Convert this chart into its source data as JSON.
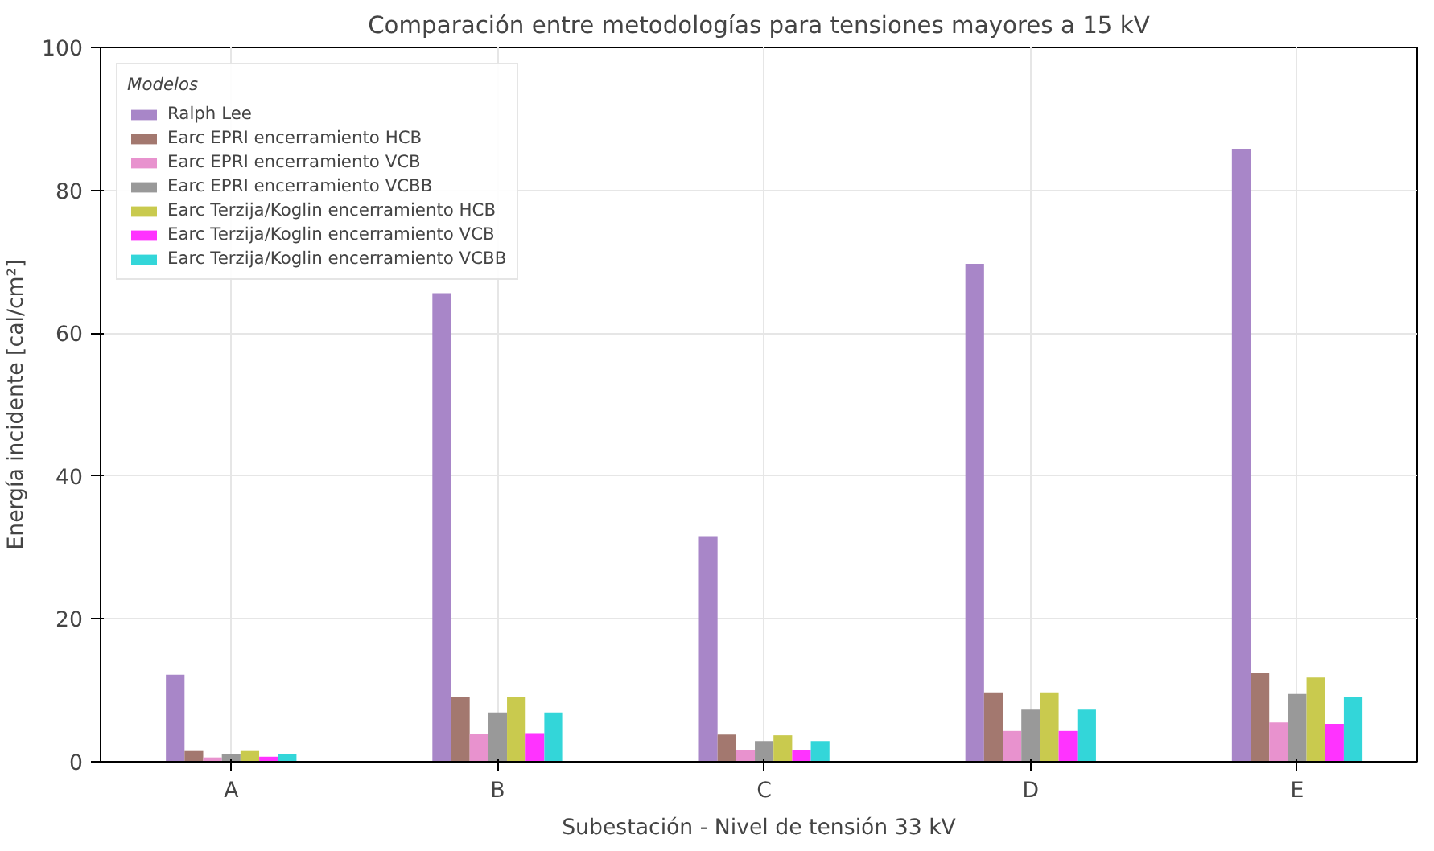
{
  "chart_data": {
    "type": "bar",
    "title": "Comparación entre metodologías para tensiones mayores a 15 kV",
    "xlabel": "Subestación - Nivel de tensión 33 kV",
    "ylabel": "Energía incidente [cal/cm²]",
    "legend_title": "Modelos",
    "categories": [
      "A",
      "B",
      "C",
      "D",
      "E"
    ],
    "series": [
      {
        "name": "Ralph Lee",
        "color": "#a886c8",
        "values": [
          12.2,
          65.6,
          31.6,
          69.7,
          85.8
        ]
      },
      {
        "name": "Earc EPRI encerramiento HCB",
        "color": "#a3786f",
        "values": [
          1.5,
          9.0,
          3.8,
          9.7,
          12.4
        ]
      },
      {
        "name": "Earc EPRI encerramiento VCB",
        "color": "#e892ce",
        "values": [
          0.6,
          3.9,
          1.6,
          4.3,
          5.5
        ]
      },
      {
        "name": "Earc EPRI encerramiento VCBB",
        "color": "#999999",
        "values": [
          1.1,
          6.9,
          2.9,
          7.3,
          9.5
        ]
      },
      {
        "name": "Earc Terzija/Koglin encerramiento HCB",
        "color": "#c9ca4e",
        "values": [
          1.5,
          9.0,
          3.7,
          9.7,
          11.8
        ]
      },
      {
        "name": "Earc Terzija/Koglin encerramiento VCB",
        "color": "#ff33ff",
        "values": [
          0.7,
          4.0,
          1.6,
          4.3,
          5.3
        ]
      },
      {
        "name": "Earc Terzija/Koglin encerramiento VCBB",
        "color": "#33d6d9",
        "values": [
          1.1,
          6.9,
          2.9,
          7.3,
          9.0
        ]
      }
    ],
    "ylim": [
      0,
      100
    ],
    "yticks": [
      0,
      20,
      40,
      60,
      80,
      100
    ],
    "grid": true,
    "legend": "top left"
  }
}
